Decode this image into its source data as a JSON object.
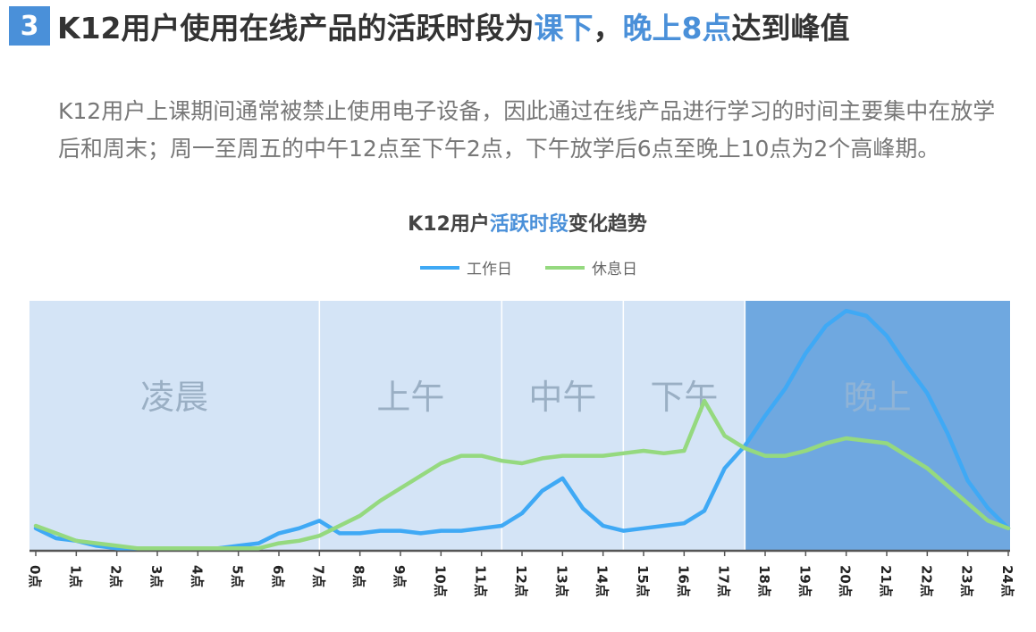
{
  "header": {
    "badge": "3",
    "title": [
      {
        "text": "K12用户使用在线产品的活跃时段为",
        "highlight": false
      },
      {
        "text": "课下",
        "highlight": true
      },
      {
        "text": "，",
        "highlight": false
      },
      {
        "text": "晚上8点",
        "highlight": true
      },
      {
        "text": "达到峰值",
        "highlight": false
      }
    ]
  },
  "paragraph": "K12用户上课期间通常被禁止使用电子设备，因此通过在线产品进行学习的时间主要集中在放学后和周末；周一至周五的中午12点至下午2点，下午放学后6点至晚上10点为2个高峰期。",
  "chart_data": {
    "type": "line",
    "title": [
      {
        "text": "K12用户",
        "highlight": false
      },
      {
        "text": "活跃时段",
        "highlight": true
      },
      {
        "text": "变化趋势",
        "highlight": false
      }
    ],
    "x": [
      0,
      0.5,
      1,
      1.5,
      2,
      2.5,
      3,
      3.5,
      4,
      4.5,
      5,
      5.5,
      6,
      6.5,
      7,
      7.5,
      8,
      8.5,
      9,
      9.5,
      10,
      10.5,
      11,
      11.5,
      12,
      12.5,
      13,
      13.5,
      14,
      14.5,
      15,
      15.5,
      16,
      16.5,
      17,
      17.5,
      18,
      18.5,
      19,
      19.5,
      20,
      20.5,
      21,
      21.5,
      22,
      22.5,
      23,
      23.5,
      24
    ],
    "series": [
      {
        "name": "工作日",
        "color": "#3fa9f5",
        "values": [
          9,
          5,
          4,
          2,
          1,
          1,
          1,
          1,
          1,
          1,
          2,
          3,
          7,
          9,
          12,
          7,
          7,
          8,
          8,
          7,
          8,
          8,
          9,
          10,
          15,
          24,
          29,
          17,
          10,
          8,
          9,
          10,
          11,
          16,
          33,
          42,
          54,
          65,
          79,
          90,
          96,
          94,
          86,
          74,
          63,
          47,
          28,
          17,
          9
        ]
      },
      {
        "name": "休息日",
        "color": "#95d97f",
        "values": [
          10,
          7,
          4,
          3,
          2,
          1,
          1,
          1,
          1,
          1,
          1,
          1,
          3,
          4,
          6,
          10,
          14,
          20,
          25,
          30,
          35,
          38,
          38,
          36,
          35,
          37,
          38,
          38,
          38,
          39,
          40,
          39,
          40,
          60,
          46,
          41,
          38,
          38,
          40,
          43,
          45,
          44,
          43,
          38,
          33,
          26,
          19,
          12,
          9
        ]
      }
    ],
    "bands": [
      {
        "label": "凌晨",
        "range": [
          0,
          7
        ],
        "color": "#d4e4f6"
      },
      {
        "label": "上午",
        "range": [
          7,
          11.5
        ],
        "color": "#d4e4f6"
      },
      {
        "label": "中午",
        "range": [
          11.5,
          14.5
        ],
        "color": "#d4e4f6"
      },
      {
        "label": "下午",
        "range": [
          14.5,
          17.5
        ],
        "color": "#d4e4f6"
      },
      {
        "label": "晚上",
        "range": [
          17.5,
          24
        ],
        "color": "#6fa8e0"
      }
    ],
    "xlim": [
      0,
      24
    ],
    "ylim": [
      0,
      100
    ],
    "xticks": [
      {
        "value": 0,
        "label": "0点"
      },
      {
        "value": 1,
        "label": "1点"
      },
      {
        "value": 2,
        "label": "2点"
      },
      {
        "value": 3,
        "label": "3点"
      },
      {
        "value": 4,
        "label": "4点"
      },
      {
        "value": 5,
        "label": "5点"
      },
      {
        "value": 6,
        "label": "6点"
      },
      {
        "value": 7,
        "label": "7点"
      },
      {
        "value": 8,
        "label": "8点"
      },
      {
        "value": 9,
        "label": "9点"
      },
      {
        "value": 10,
        "label": "10点"
      },
      {
        "value": 11,
        "label": "11点"
      },
      {
        "value": 12,
        "label": "12点"
      },
      {
        "value": 13,
        "label": "13点"
      },
      {
        "value": 14,
        "label": "14点"
      },
      {
        "value": 15,
        "label": "15点"
      },
      {
        "value": 16,
        "label": "16点"
      },
      {
        "value": 17,
        "label": "17点"
      },
      {
        "value": 18,
        "label": "18点"
      },
      {
        "value": 19,
        "label": "19点"
      },
      {
        "value": 20,
        "label": "20点"
      },
      {
        "value": 21,
        "label": "21点"
      },
      {
        "value": 22,
        "label": "22点"
      },
      {
        "value": 23,
        "label": "23点"
      },
      {
        "value": 24,
        "label": "24点"
      }
    ],
    "legend": "top"
  }
}
